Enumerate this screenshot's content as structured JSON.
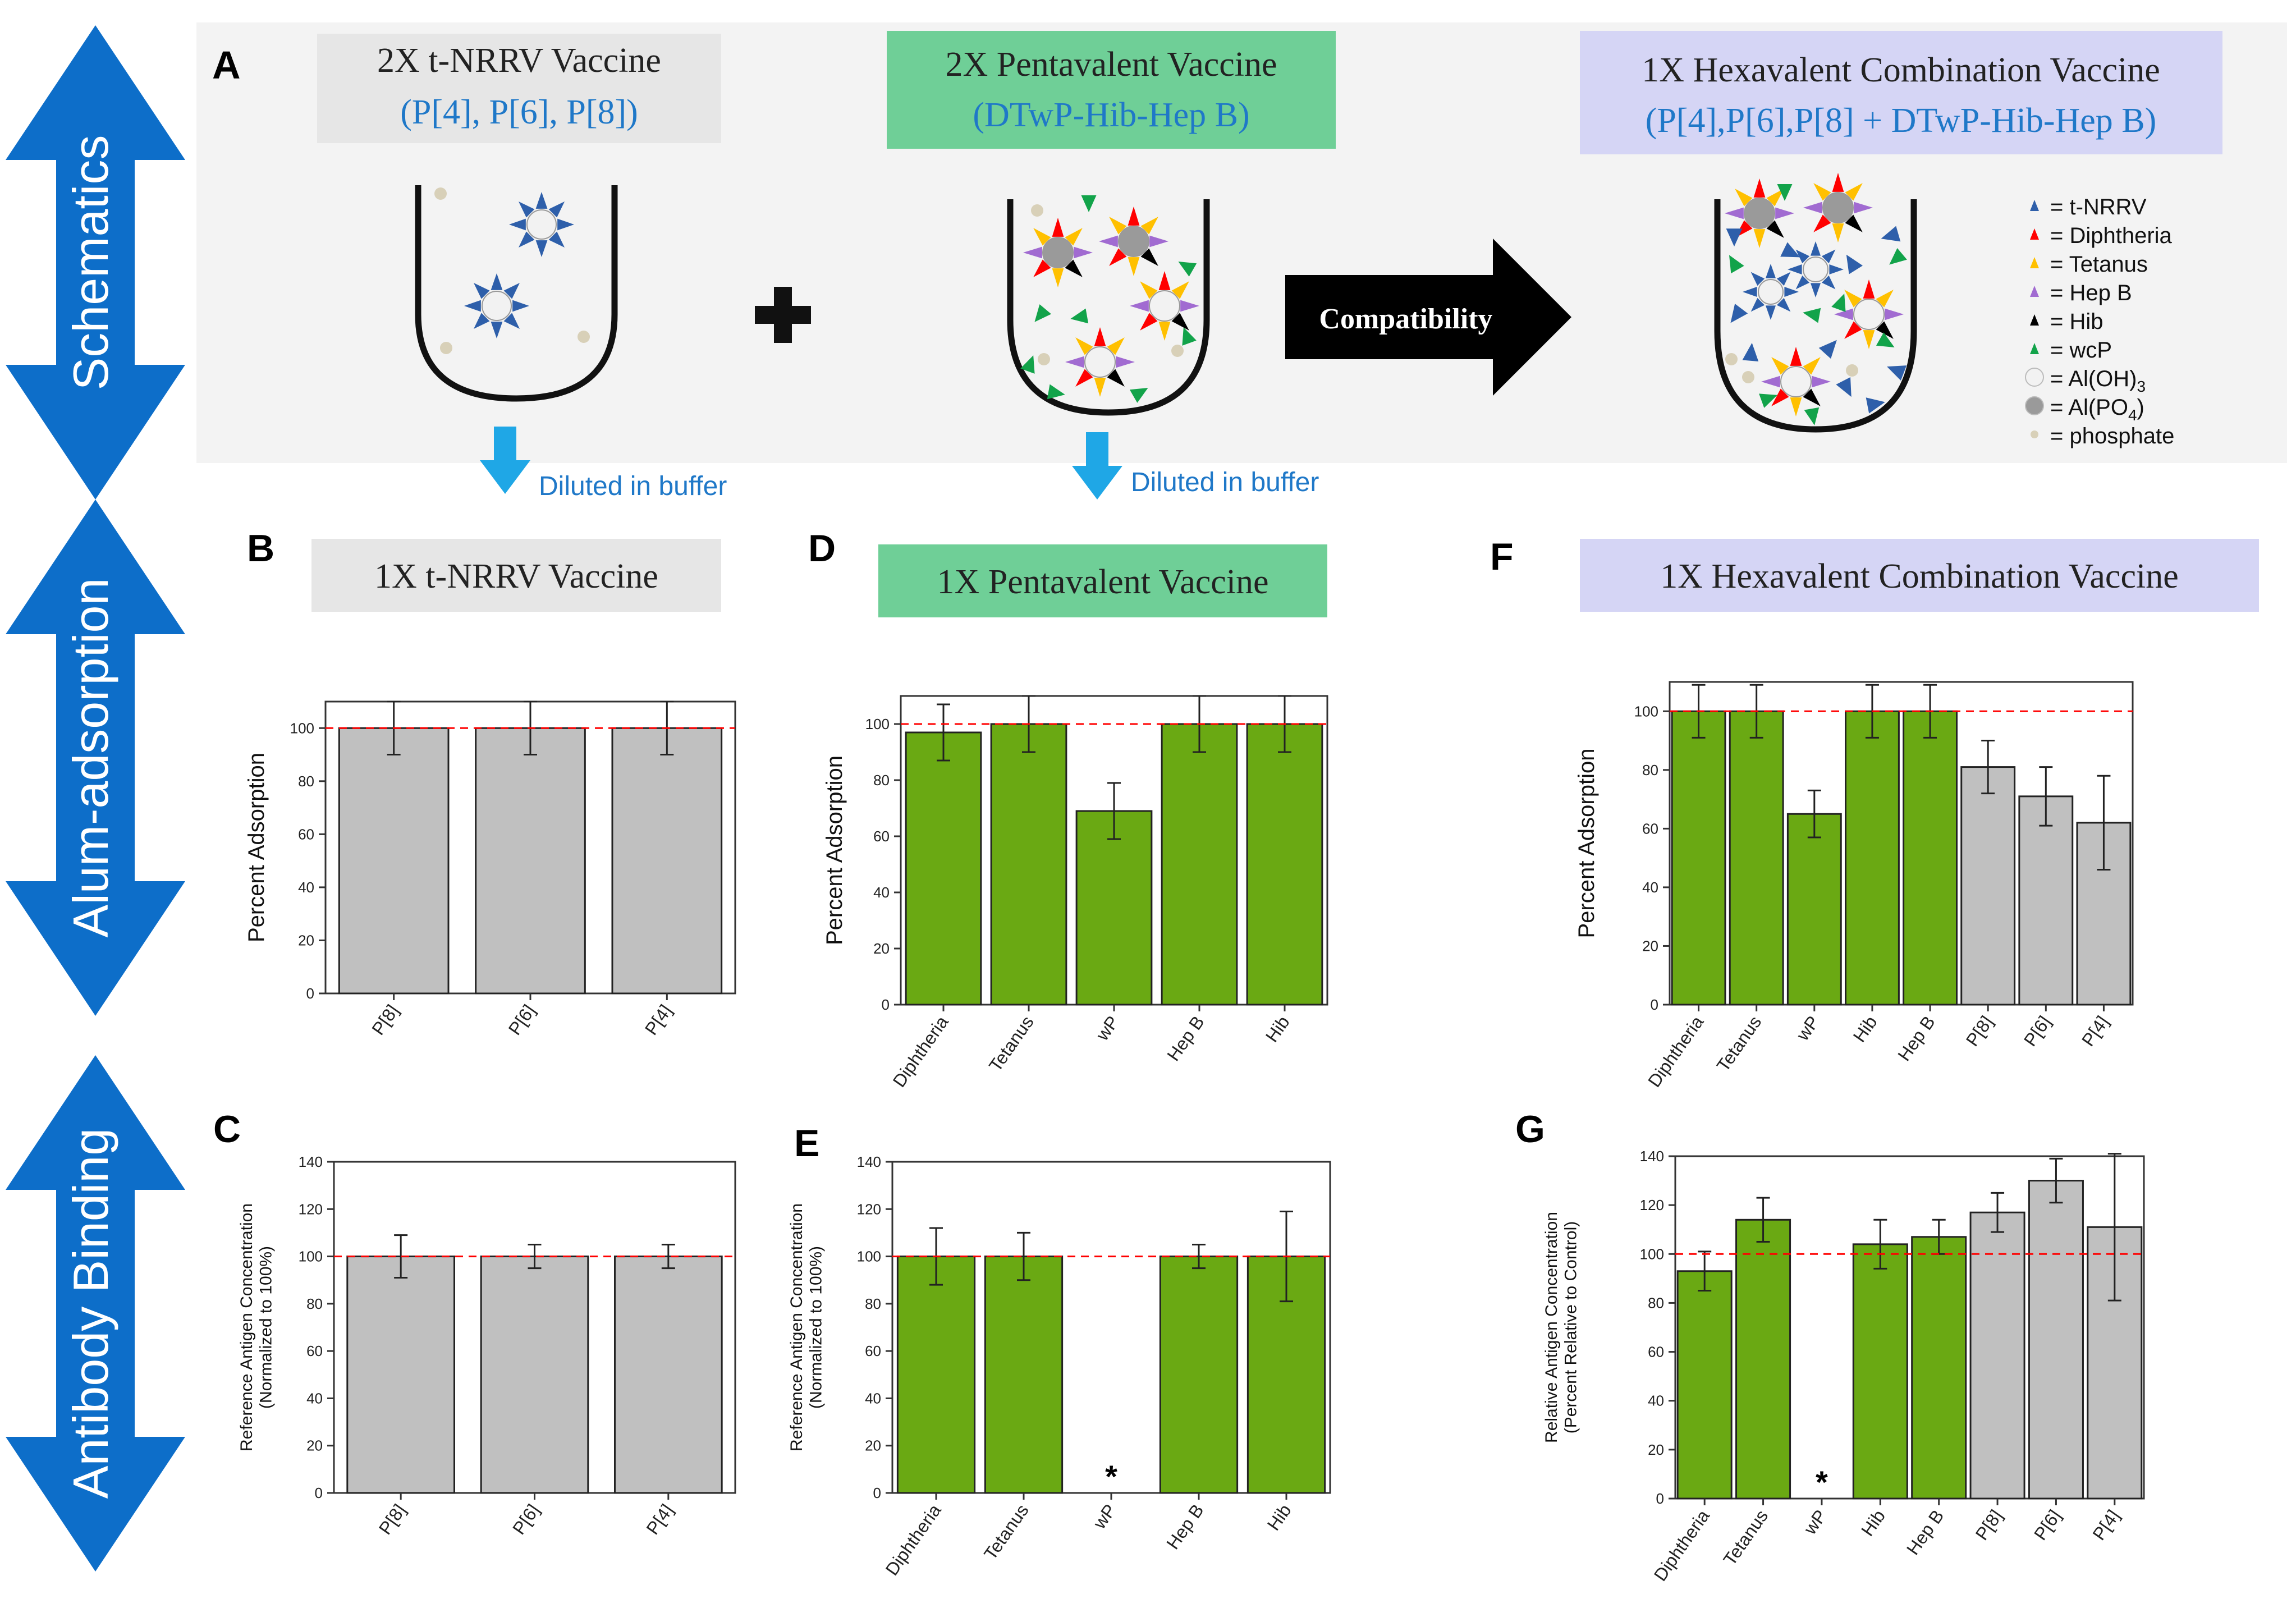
{
  "colors": {
    "green": "#6aa913",
    "gray": "#c0c0c0",
    "blue_arrow": "#0d6ec9",
    "ref_line": "#ff0000",
    "box_gray": "#e6e6e6",
    "box_green": "#6fcf97",
    "box_purple": "#d5d5f5",
    "blue_text": "#1f78c8",
    "tnrrv": "#2e5faa",
    "diphtheria": "#ff0000",
    "tetanus": "#ffc000",
    "hepb": "#a16bd1",
    "hib": "#000000",
    "wcp": "#12a34a",
    "aloh": "#f2f2f2",
    "alpo4": "#9a9a9a",
    "phosphate": "#d8d0b8",
    "light_blue_arrow": "#1fa7e6"
  },
  "side_labels": [
    "Schematics",
    "Alum-adsorption",
    "Antibody Binding"
  ],
  "panel_a": {
    "letter": "A",
    "box1": {
      "title": "2X t-NRRV Vaccine",
      "subtitle": "(P[4], P[6], P[8])"
    },
    "box2": {
      "title": "2X Pentavalent Vaccine",
      "subtitle": "(DTwP-Hib-Hep B)"
    },
    "box3": {
      "title": "1X Hexavalent Combination Vaccine",
      "subtitle": "(P[4],P[6],P[8] + DTwP-Hib-Hep B)"
    },
    "arrow_label": "Compatibility",
    "plus_icon": "plus-icon",
    "diluted_1": "Diluted in buffer",
    "diluted_2": "Diluted in buffer",
    "legend": [
      {
        "label": "= t-NRRV",
        "shape": "triangle",
        "color": "#2e5faa"
      },
      {
        "label": "= Diphtheria",
        "shape": "triangle",
        "color": "#ff0000"
      },
      {
        "label": "= Tetanus",
        "shape": "triangle",
        "color": "#ffc000"
      },
      {
        "label": "= Hep B",
        "shape": "triangle",
        "color": "#a16bd1"
      },
      {
        "label": "= Hib",
        "shape": "triangle",
        "color": "#000000"
      },
      {
        "label": "= wcP",
        "shape": "triangle",
        "color": "#12a34a"
      },
      {
        "label": "= Al(OH)",
        "sub": "3",
        "shape": "circle",
        "color": "#f2f2f2"
      },
      {
        "label": "= Al(PO",
        "sub": "4",
        "tail": ")",
        "shape": "circle",
        "color": "#9a9a9a"
      },
      {
        "label": "= phosphate",
        "shape": "dot",
        "color": "#d8d0b8"
      }
    ]
  },
  "chart_data": [
    {
      "id": "B",
      "letter": "B",
      "type": "bar",
      "header": "1X t-NRRV Vaccine",
      "ylabel": [
        "Percent Adsorption"
      ],
      "ylim": [
        0,
        110
      ],
      "yticks": [
        0,
        20,
        40,
        60,
        80,
        100
      ],
      "ref": 100,
      "categories": [
        "P[8]",
        "P[6]",
        "P[4]"
      ],
      "values": [
        100,
        100,
        100
      ],
      "errors": [
        10,
        10,
        10
      ],
      "colors": [
        "gray",
        "gray",
        "gray"
      ],
      "stars": []
    },
    {
      "id": "C",
      "letter": "C",
      "type": "bar",
      "header": "",
      "ylabel": [
        "Reference Antigen Concentration",
        "(Normalized to 100%)"
      ],
      "ylim": [
        0,
        140
      ],
      "yticks": [
        0,
        20,
        40,
        60,
        80,
        100,
        120,
        140
      ],
      "ref": 100,
      "categories": [
        "P[8]",
        "P[6]",
        "P[4]"
      ],
      "values": [
        100,
        100,
        100
      ],
      "errors": [
        9,
        5,
        5
      ],
      "colors": [
        "gray",
        "gray",
        "gray"
      ],
      "stars": []
    },
    {
      "id": "D",
      "letter": "D",
      "type": "bar",
      "header": "1X Pentavalent Vaccine",
      "ylabel": [
        "Percent Adsorption"
      ],
      "ylim": [
        0,
        110
      ],
      "yticks": [
        0,
        20,
        40,
        60,
        80,
        100
      ],
      "ref": 100,
      "categories": [
        "Diphtheria",
        "Tetanus",
        "wP",
        "Hep B",
        "Hib"
      ],
      "values": [
        97,
        100,
        69,
        100,
        100
      ],
      "errors": [
        10,
        10,
        10,
        10,
        10
      ],
      "colors": [
        "green",
        "green",
        "green",
        "green",
        "green"
      ],
      "stars": []
    },
    {
      "id": "E",
      "letter": "E",
      "type": "bar",
      "header": "",
      "ylabel": [
        "Reference Antigen Concentration",
        "(Normalized to 100%)"
      ],
      "ylim": [
        0,
        140
      ],
      "yticks": [
        0,
        20,
        40,
        60,
        80,
        100,
        120,
        140
      ],
      "ref": 100,
      "categories": [
        "Diphtheria",
        "Tetanus",
        "wP",
        "Hep B",
        "Hib"
      ],
      "values": [
        100,
        100,
        null,
        100,
        100
      ],
      "errors": [
        12,
        10,
        null,
        5,
        19
      ],
      "colors": [
        "green",
        "green",
        "green",
        "green",
        "green"
      ],
      "stars": [
        2
      ],
      "star_label": "*"
    },
    {
      "id": "F",
      "letter": "F",
      "type": "bar",
      "header": "1X Hexavalent Combination Vaccine",
      "ylabel": [
        "Percent Adsorption"
      ],
      "ylim": [
        0,
        110
      ],
      "yticks": [
        0,
        20,
        40,
        60,
        80,
        100
      ],
      "ref": 100,
      "categories": [
        "Diphtheria",
        "Tetanus",
        "wP",
        "Hib",
        "Hep B",
        "P[8]",
        "P[6]",
        "P[4]"
      ],
      "values": [
        100,
        100,
        65,
        100,
        100,
        81,
        71,
        62
      ],
      "errors": [
        9,
        9,
        8,
        9,
        9,
        9,
        10,
        16
      ],
      "colors": [
        "green",
        "green",
        "green",
        "green",
        "green",
        "gray",
        "gray",
        "gray"
      ],
      "stars": []
    },
    {
      "id": "G",
      "letter": "G",
      "type": "bar",
      "header": "",
      "ylabel": [
        "Relative Antigen Concentration",
        "(Percent Relative to Control)"
      ],
      "ylim": [
        0,
        140
      ],
      "yticks": [
        0,
        20,
        40,
        60,
        80,
        100,
        120,
        140
      ],
      "ref": 100,
      "categories": [
        "Diphtheria",
        "Tetanus",
        "wP",
        "Hib",
        "Hep B",
        "P[8]",
        "P[6]",
        "P[4]"
      ],
      "values": [
        93,
        114,
        null,
        104,
        107,
        117,
        130,
        111
      ],
      "errors": [
        8,
        9,
        null,
        10,
        7,
        8,
        9,
        30
      ],
      "colors": [
        "green",
        "green",
        "green",
        "green",
        "green",
        "gray",
        "gray",
        "gray"
      ],
      "stars": [
        2
      ],
      "star_label": "*"
    }
  ]
}
